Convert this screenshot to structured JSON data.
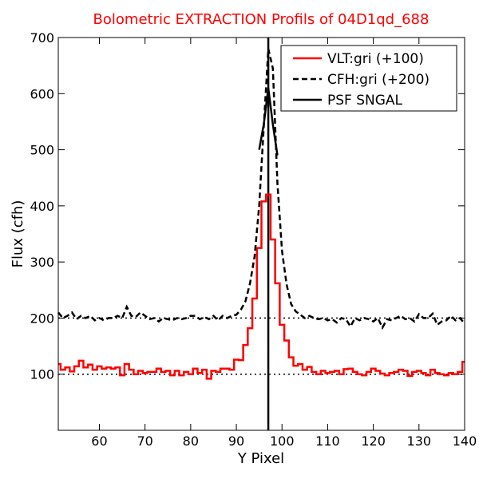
{
  "chart_data": {
    "type": "line",
    "title": "Bolometric EXTRACTION Profils of 04D1qd_688",
    "title_color": "#ff0000",
    "xlabel": "Y Pixel",
    "ylabel": "Flux (cfh)",
    "xlim": [
      51,
      140
    ],
    "ylim": [
      0,
      700
    ],
    "xticks": [
      60,
      70,
      80,
      90,
      100,
      110,
      120,
      130,
      140
    ],
    "yticks": [
      100,
      200,
      300,
      400,
      500,
      600,
      700
    ],
    "grid": false,
    "legend_position": "top-right",
    "reference_lines": [
      {
        "orientation": "horizontal",
        "y": 100,
        "style": "dotted",
        "color": "#000000"
      },
      {
        "orientation": "horizontal",
        "y": 200,
        "style": "dotted",
        "color": "#000000"
      },
      {
        "orientation": "vertical",
        "x": 97,
        "style": "solid",
        "color": "#000000"
      }
    ],
    "series": [
      {
        "name": "VLT:gri (+100)",
        "color": "#ff0000",
        "style": "steps",
        "x": [
          51,
          52,
          53,
          54,
          55,
          56,
          57,
          58,
          59,
          60,
          61,
          62,
          63,
          64,
          65,
          66,
          67,
          68,
          69,
          70,
          71,
          72,
          73,
          74,
          75,
          76,
          77,
          78,
          79,
          80,
          81,
          82,
          83,
          84,
          85,
          86,
          87,
          88,
          89,
          90,
          91,
          92,
          93,
          94,
          95,
          96,
          97,
          98,
          99,
          100,
          101,
          102,
          103,
          104,
          105,
          106,
          107,
          108,
          109,
          110,
          111,
          112,
          113,
          114,
          115,
          116,
          117,
          118,
          119,
          120,
          121,
          122,
          123,
          124,
          125,
          126,
          127,
          128,
          129,
          130,
          131,
          132,
          133,
          134,
          135,
          136,
          137,
          138,
          139,
          140
        ],
        "values": [
          118,
          108,
          112,
          105,
          114,
          124,
          112,
          117,
          108,
          114,
          110,
          112,
          110,
          112,
          98,
          118,
          108,
          100,
          106,
          102,
          104,
          104,
          110,
          104,
          106,
          98,
          106,
          98,
          104,
          100,
          110,
          102,
          108,
          92,
          106,
          104,
          110,
          110,
          108,
          126,
          125,
          152,
          182,
          235,
          325,
          408,
          420,
          340,
          262,
          188,
          160,
          130,
          115,
          118,
          108,
          113,
          104,
          100,
          106,
          102,
          104,
          106,
          100,
          109,
          110,
          104,
          100,
          98,
          104,
          110,
          106,
          101,
          98,
          102,
          104,
          108,
          106,
          97,
          104,
          106,
          102,
          98,
          108,
          102,
          100,
          98,
          102,
          100,
          104,
          122
        ]
      },
      {
        "name": "CFH:gri (+200)",
        "color": "#000000",
        "style": "dashed",
        "x": [
          51,
          52,
          53,
          54,
          55,
          56,
          57,
          58,
          59,
          60,
          61,
          62,
          63,
          64,
          65,
          66,
          67,
          68,
          69,
          70,
          71,
          72,
          73,
          74,
          75,
          76,
          77,
          78,
          79,
          80,
          81,
          82,
          83,
          84,
          85,
          86,
          87,
          88,
          89,
          90,
          91,
          92,
          93,
          94,
          95,
          96,
          97,
          98,
          99,
          100,
          101,
          102,
          103,
          104,
          105,
          106,
          107,
          108,
          109,
          110,
          111,
          112,
          113,
          114,
          115,
          116,
          117,
          118,
          119,
          120,
          121,
          122,
          123,
          124,
          125,
          126,
          127,
          128,
          129,
          130,
          131,
          132,
          133,
          134,
          135,
          136,
          137,
          138,
          139,
          140
        ],
        "values": [
          210,
          200,
          204,
          210,
          198,
          204,
          200,
          204,
          196,
          200,
          196,
          200,
          200,
          204,
          200,
          220,
          204,
          202,
          210,
          204,
          198,
          200,
          194,
          200,
          198,
          196,
          200,
          198,
          200,
          204,
          204,
          198,
          202,
          198,
          204,
          196,
          204,
          200,
          204,
          206,
          215,
          230,
          262,
          310,
          400,
          540,
          680,
          645,
          440,
          320,
          260,
          225,
          212,
          206,
          200,
          204,
          200,
          198,
          200,
          196,
          198,
          192,
          200,
          198,
          185,
          200,
          196,
          200,
          198,
          194,
          200,
          183,
          198,
          196,
          200,
          204,
          198,
          200,
          194,
          207,
          200,
          200,
          208,
          188,
          194,
          196,
          204,
          196,
          200,
          190
        ]
      },
      {
        "name": "PSF SNGAL",
        "color": "#000000",
        "style": "solid",
        "x": [
          95,
          96,
          97,
          98,
          99
        ],
        "values": [
          500,
          545,
          610,
          545,
          490
        ]
      }
    ]
  }
}
